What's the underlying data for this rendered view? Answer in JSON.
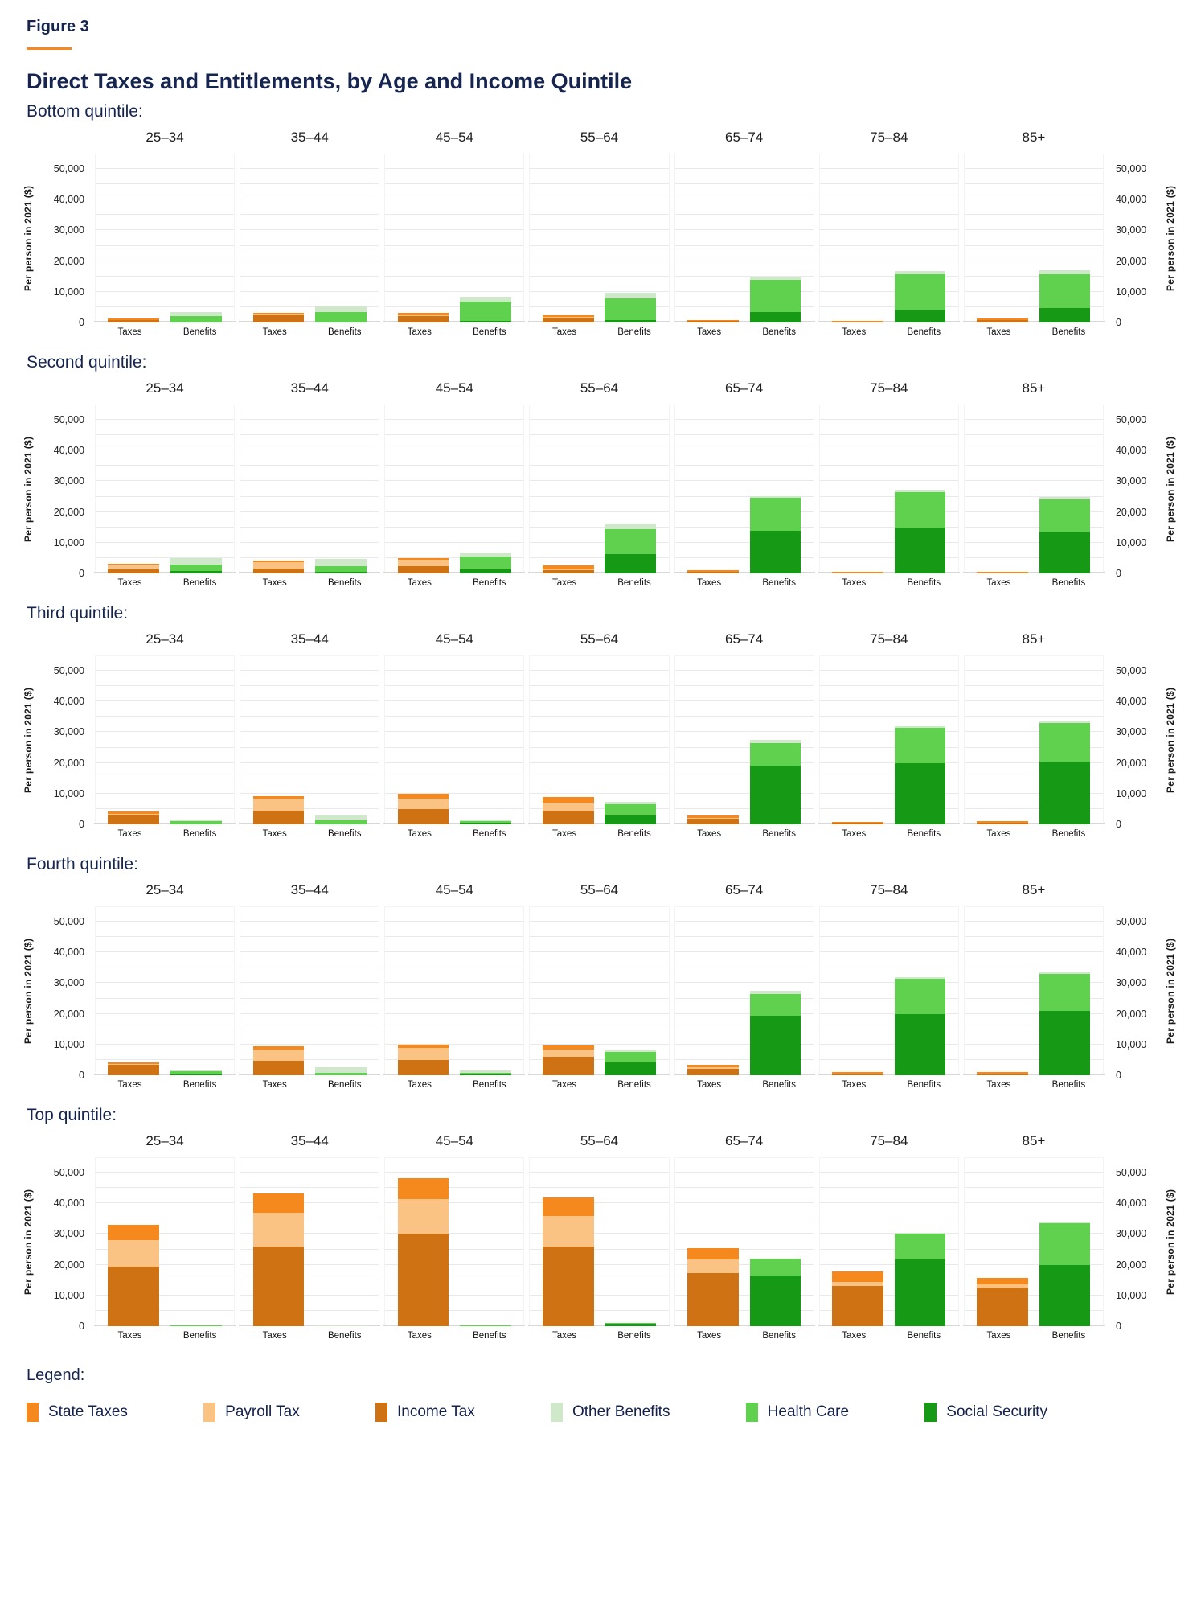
{
  "header": {
    "figure_label": "Figure 3",
    "title": "Direct Taxes and Entitlements, by Age and Income Quintile"
  },
  "legend": {
    "heading": "Legend:",
    "items": [
      {
        "key": "income_tax",
        "label": "Income Tax",
        "color": "#CE7214"
      },
      {
        "key": "payroll_tax",
        "label": "Payroll Tax",
        "color": "#FAC384"
      },
      {
        "key": "state_taxes",
        "label": "State Taxes",
        "color": "#F6891E"
      },
      {
        "key": "social_security",
        "label": "Social Security",
        "color": "#169A16"
      },
      {
        "key": "health_care",
        "label": "Health Care",
        "color": "#5FD14E"
      },
      {
        "key": "other_benefits",
        "label": "Other Benefits",
        "color": "#CFE8C9"
      }
    ],
    "display_order": [
      "state_taxes",
      "payroll_tax",
      "income_tax",
      "other_benefits",
      "health_care",
      "social_security"
    ]
  },
  "chart_data": {
    "type": "bar",
    "title": "Direct Taxes and Entitlements, by Age and Income Quintile",
    "ylabel": "Per person in 2021 ($)",
    "yticks": [
      0,
      10000,
      20000,
      30000,
      40000,
      50000
    ],
    "ylim": [
      0,
      55000
    ],
    "grid_step": 5000,
    "grid": true,
    "legend_position": "bottom",
    "age_groups": [
      "25–34",
      "35–44",
      "45–54",
      "55–64",
      "65–74",
      "75–84",
      "85+"
    ],
    "bar_categories": [
      "Taxes",
      "Benefits"
    ],
    "tax_stack": [
      "income_tax",
      "payroll_tax",
      "state_taxes"
    ],
    "benefit_stack": [
      "social_security",
      "health_care",
      "other_benefits"
    ],
    "quintiles": [
      {
        "label": "Bottom quintile:",
        "panels": [
          {
            "taxes": {
              "income_tax": 700,
              "payroll_tax": 100,
              "state_taxes": 400
            },
            "benefits": {
              "social_security": 200,
              "health_care": 1800,
              "other_benefits": 1500
            }
          },
          {
            "taxes": {
              "income_tax": 2300,
              "payroll_tax": 200,
              "state_taxes": 600
            },
            "benefits": {
              "social_security": 300,
              "health_care": 3000,
              "other_benefits": 1900
            }
          },
          {
            "taxes": {
              "income_tax": 2200,
              "payroll_tax": 200,
              "state_taxes": 700
            },
            "benefits": {
              "social_security": 500,
              "health_care": 6300,
              "other_benefits": 1700
            }
          },
          {
            "taxes": {
              "income_tax": 1700,
              "payroll_tax": 100,
              "state_taxes": 500
            },
            "benefits": {
              "social_security": 900,
              "health_care": 6900,
              "other_benefits": 2000
            }
          },
          {
            "taxes": {
              "income_tax": 500,
              "payroll_tax": 0,
              "state_taxes": 400
            },
            "benefits": {
              "social_security": 3500,
              "health_care": 10300,
              "other_benefits": 1200
            }
          },
          {
            "taxes": {
              "income_tax": 200,
              "payroll_tax": 0,
              "state_taxes": 300
            },
            "benefits": {
              "social_security": 4300,
              "health_care": 11500,
              "other_benefits": 1000
            }
          },
          {
            "taxes": {
              "income_tax": 900,
              "payroll_tax": 0,
              "state_taxes": 400
            },
            "benefits": {
              "social_security": 4800,
              "health_care": 11000,
              "other_benefits": 1200
            }
          }
        ]
      },
      {
        "label": "Second quintile:",
        "panels": [
          {
            "taxes": {
              "income_tax": 1200,
              "payroll_tax": 1600,
              "state_taxes": 400
            },
            "benefits": {
              "social_security": 700,
              "health_care": 2300,
              "other_benefits": 2000
            }
          },
          {
            "taxes": {
              "income_tax": 1500,
              "payroll_tax": 2100,
              "state_taxes": 600
            },
            "benefits": {
              "social_security": 400,
              "health_care": 2000,
              "other_benefits": 2400
            }
          },
          {
            "taxes": {
              "income_tax": 2400,
              "payroll_tax": 2000,
              "state_taxes": 600
            },
            "benefits": {
              "social_security": 1200,
              "health_care": 4400,
              "other_benefits": 1200
            }
          },
          {
            "taxes": {
              "income_tax": 1100,
              "payroll_tax": 200,
              "state_taxes": 1200
            },
            "benefits": {
              "social_security": 6300,
              "health_care": 8000,
              "other_benefits": 2000
            }
          },
          {
            "taxes": {
              "income_tax": 500,
              "payroll_tax": 100,
              "state_taxes": 400
            },
            "benefits": {
              "social_security": 14000,
              "health_care": 10500,
              "other_benefits": 700
            }
          },
          {
            "taxes": {
              "income_tax": 200,
              "payroll_tax": 0,
              "state_taxes": 300
            },
            "benefits": {
              "social_security": 15000,
              "health_care": 11500,
              "other_benefits": 800
            }
          },
          {
            "taxes": {
              "income_tax": 200,
              "payroll_tax": 0,
              "state_taxes": 300
            },
            "benefits": {
              "social_security": 13500,
              "health_care": 10500,
              "other_benefits": 1000
            }
          }
        ]
      },
      {
        "label": "Third quintile:",
        "panels": [
          {
            "taxes": {
              "income_tax": 3200,
              "payroll_tax": 300,
              "state_taxes": 600
            },
            "benefits": {
              "social_security": 100,
              "health_care": 900,
              "other_benefits": 600
            }
          },
          {
            "taxes": {
              "income_tax": 4500,
              "payroll_tax": 3800,
              "state_taxes": 1000
            },
            "benefits": {
              "social_security": 200,
              "health_care": 1000,
              "other_benefits": 1600
            }
          },
          {
            "taxes": {
              "income_tax": 5000,
              "payroll_tax": 3500,
              "state_taxes": 1500
            },
            "benefits": {
              "social_security": 400,
              "health_care": 600,
              "other_benefits": 700
            }
          },
          {
            "taxes": {
              "income_tax": 4500,
              "payroll_tax": 2500,
              "state_taxes": 1800
            },
            "benefits": {
              "social_security": 3000,
              "health_care": 3500,
              "other_benefits": 800
            }
          },
          {
            "taxes": {
              "income_tax": 1800,
              "payroll_tax": 200,
              "state_taxes": 800
            },
            "benefits": {
              "social_security": 19000,
              "health_care": 7500,
              "other_benefits": 1000
            }
          },
          {
            "taxes": {
              "income_tax": 400,
              "payroll_tax": 0,
              "state_taxes": 400
            },
            "benefits": {
              "social_security": 20000,
              "health_care": 11500,
              "other_benefits": 500
            }
          },
          {
            "taxes": {
              "income_tax": 500,
              "payroll_tax": 0,
              "state_taxes": 500
            },
            "benefits": {
              "social_security": 20500,
              "health_care": 12500,
              "other_benefits": 500
            }
          }
        ]
      },
      {
        "label": "Fourth quintile:",
        "panels": [
          {
            "taxes": {
              "income_tax": 3300,
              "payroll_tax": 300,
              "state_taxes": 600
            },
            "benefits": {
              "social_security": 400,
              "health_care": 900,
              "other_benefits": 300
            }
          },
          {
            "taxes": {
              "income_tax": 4700,
              "payroll_tax": 3800,
              "state_taxes": 1000
            },
            "benefits": {
              "social_security": 100,
              "health_care": 700,
              "other_benefits": 1900
            }
          },
          {
            "taxes": {
              "income_tax": 5000,
              "payroll_tax": 4000,
              "state_taxes": 1000
            },
            "benefits": {
              "social_security": 300,
              "health_care": 500,
              "other_benefits": 700
            }
          },
          {
            "taxes": {
              "income_tax": 6000,
              "payroll_tax": 2300,
              "state_taxes": 1300
            },
            "benefits": {
              "social_security": 4200,
              "health_care": 3300,
              "other_benefits": 800
            }
          },
          {
            "taxes": {
              "income_tax": 2200,
              "payroll_tax": 300,
              "state_taxes": 800
            },
            "benefits": {
              "social_security": 19500,
              "health_care": 7000,
              "other_benefits": 900
            }
          },
          {
            "taxes": {
              "income_tax": 500,
              "payroll_tax": 100,
              "state_taxes": 500
            },
            "benefits": {
              "social_security": 19800,
              "health_care": 11700,
              "other_benefits": 500
            }
          },
          {
            "taxes": {
              "income_tax": 500,
              "payroll_tax": 100,
              "state_taxes": 500
            },
            "benefits": {
              "social_security": 21000,
              "health_care": 12000,
              "other_benefits": 500
            }
          }
        ]
      },
      {
        "label": "Top quintile:",
        "panels": [
          {
            "taxes": {
              "income_tax": 19500,
              "payroll_tax": 8500,
              "state_taxes": 5000
            },
            "benefits": {
              "social_security": 0,
              "health_care": 200,
              "other_benefits": 200
            }
          },
          {
            "taxes": {
              "income_tax": 26000,
              "payroll_tax": 11000,
              "state_taxes": 6300
            },
            "benefits": {
              "social_security": 0,
              "health_care": 100,
              "other_benefits": 100
            }
          },
          {
            "taxes": {
              "income_tax": 30000,
              "payroll_tax": 11500,
              "state_taxes": 6800
            },
            "benefits": {
              "social_security": 100,
              "health_care": 100,
              "other_benefits": 100
            }
          },
          {
            "taxes": {
              "income_tax": 26000,
              "payroll_tax": 10000,
              "state_taxes": 6000
            },
            "benefits": {
              "social_security": 800,
              "health_care": 100,
              "other_benefits": 0
            }
          },
          {
            "taxes": {
              "income_tax": 17300,
              "payroll_tax": 4400,
              "state_taxes": 3800
            },
            "benefits": {
              "social_security": 16600,
              "health_care": 5300,
              "other_benefits": 0
            }
          },
          {
            "taxes": {
              "income_tax": 13000,
              "payroll_tax": 1500,
              "state_taxes": 3300
            },
            "benefits": {
              "social_security": 21800,
              "health_care": 8200,
              "other_benefits": 300
            }
          },
          {
            "taxes": {
              "income_tax": 12500,
              "payroll_tax": 1000,
              "state_taxes": 2300
            },
            "benefits": {
              "social_security": 19800,
              "health_care": 13700,
              "other_benefits": 300
            }
          }
        ]
      }
    ]
  }
}
